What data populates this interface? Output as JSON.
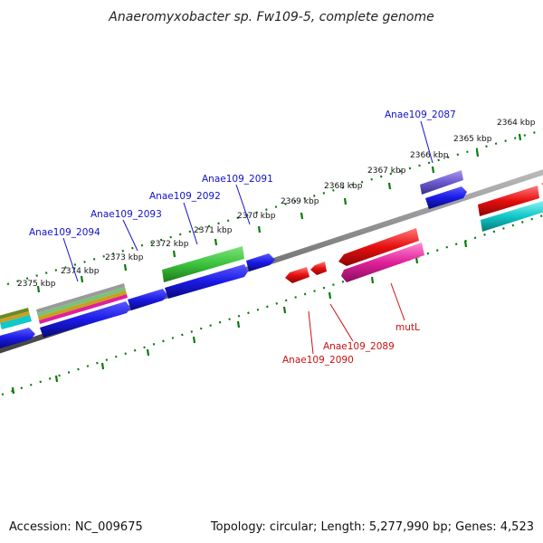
{
  "title": "Anaeromyxobacter sp. Fw109-5, complete genome",
  "footer": {
    "accession": "Accession: NC_009675",
    "summary": "Topology: circular; Length: 5,277,990 bp; Genes: 4,523"
  },
  "scale_labels": [
    "2364 kbp",
    "2365 kbp",
    "2366 kbp",
    "2367 kbp",
    "2368 kbp",
    "2369 kbp",
    "2370 kbp",
    "2371 kbp",
    "2372 kbp",
    "2373 kbp",
    "2374 kbp",
    "2375 kbp"
  ],
  "gene_labels_forward": [
    "Anae109_2087",
    "Anae109_2091",
    "Anae109_2092",
    "Anae109_2093",
    "Anae109_2094"
  ],
  "gene_labels_reverse": [
    "mutL",
    "Anae109_2089",
    "Anae109_2090"
  ],
  "colors": {
    "backbone": "#777777",
    "ticks": "#0a7a0a",
    "forward_label": "#1111cc",
    "reverse_label": "#cc1111",
    "blue": "#1a1ae6",
    "green": "#3cc23c",
    "purple": "#6a5acd",
    "red": "#e60e0e",
    "magenta": "#e0209a",
    "cyan": "#10c8c8"
  }
}
